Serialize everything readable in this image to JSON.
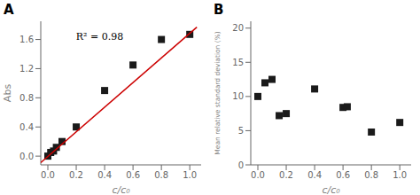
{
  "chart_data": [
    {
      "type": "scatter",
      "title": "A",
      "xlabel": "c/c₀",
      "ylabel": "Abs",
      "annotation": "R² = 0.98",
      "grid": false,
      "series": [
        {
          "type": "scatter",
          "x": [
            0.0,
            0.02,
            0.04,
            0.06,
            0.1,
            0.2,
            0.4,
            0.6,
            0.8,
            1.0
          ],
          "values": [
            0.0,
            0.05,
            0.07,
            0.12,
            0.2,
            0.4,
            0.9,
            1.25,
            1.6,
            1.67
          ],
          "color": "#1a1a1a",
          "marker": "square"
        },
        {
          "type": "line",
          "x": [
            -0.05,
            1.05
          ],
          "values": [
            -0.09,
            1.77
          ],
          "color": "#cc0000"
        }
      ],
      "xlim": [
        -0.05,
        1.08
      ],
      "ylim": [
        -0.12,
        1.85
      ],
      "xticks": [
        {
          "value": 0.0,
          "label": "0.0"
        },
        0.2,
        0.4,
        0.6,
        0.8,
        {
          "value": 1.0,
          "label": "1.0"
        }
      ],
      "yticks": [
        {
          "value": 0.0,
          "label": "0.0"
        },
        0.4,
        0.8,
        1.2,
        1.6
      ]
    },
    {
      "type": "scatter",
      "title": "B",
      "xlabel": "c/c₀",
      "ylabel": "Mean relative standard deviation (%)",
      "grid": false,
      "series": [
        {
          "type": "scatter",
          "x": [
            0.0,
            0.05,
            0.1,
            0.15,
            0.2,
            0.4,
            0.6,
            0.63,
            0.8,
            1.0
          ],
          "values": [
            10.0,
            12.0,
            12.5,
            7.2,
            7.5,
            11.1,
            8.4,
            8.5,
            4.8,
            6.2
          ],
          "color": "#1a1a1a",
          "marker": "square"
        }
      ],
      "xlim": [
        -0.05,
        1.08
      ],
      "ylim": [
        0,
        21
      ],
      "xticks": [
        {
          "value": 0.0,
          "label": "0.0"
        },
        0.2,
        0.4,
        0.6,
        0.8,
        {
          "value": 1.0,
          "label": "1.0"
        }
      ],
      "yticks": [
        0,
        5,
        10,
        15,
        20
      ]
    }
  ]
}
